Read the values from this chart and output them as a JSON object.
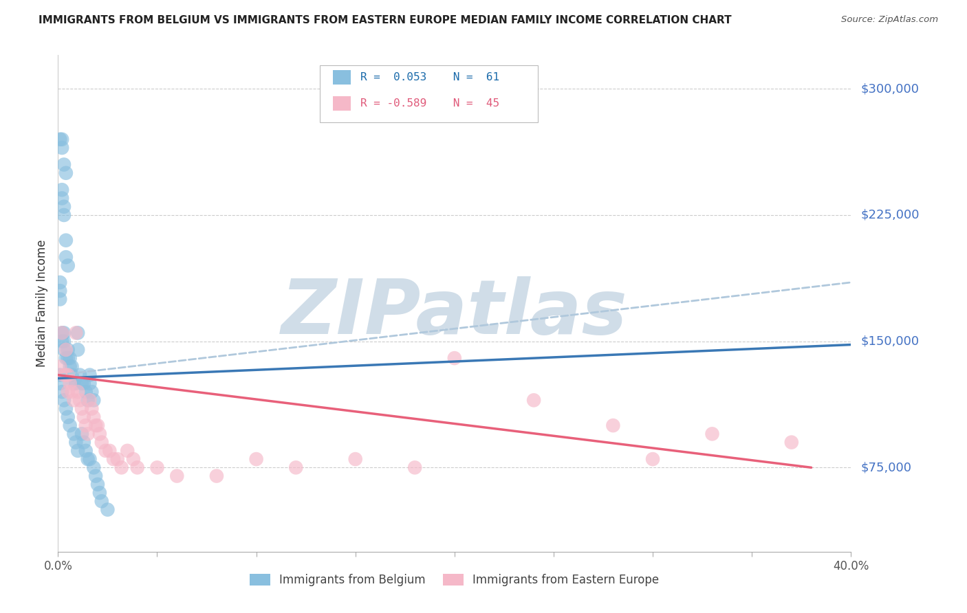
{
  "title": "IMMIGRANTS FROM BELGIUM VS IMMIGRANTS FROM EASTERN EUROPE MEDIAN FAMILY INCOME CORRELATION CHART",
  "source": "Source: ZipAtlas.com",
  "ylabel": "Median Family Income",
  "y_ticks": [
    75000,
    150000,
    225000,
    300000
  ],
  "y_tick_labels": [
    "$75,000",
    "$150,000",
    "$225,000",
    "$300,000"
  ],
  "x_min": 0.0,
  "x_max": 0.4,
  "y_min": 25000,
  "y_max": 320000,
  "blue_color": "#89bfdf",
  "pink_color": "#f5b8c8",
  "blue_line_color": "#3a78b5",
  "pink_line_color": "#e8607a",
  "blue_dashed_color": "#b0c8dc",
  "right_label_color": "#4472c4",
  "watermark": "ZIPatlas",
  "watermark_color": "#d0dde8",
  "blue_scatter_x": [
    0.001,
    0.002,
    0.002,
    0.003,
    0.004,
    0.001,
    0.001,
    0.001,
    0.002,
    0.002,
    0.003,
    0.003,
    0.004,
    0.004,
    0.005,
    0.002,
    0.002,
    0.003,
    0.003,
    0.003,
    0.004,
    0.005,
    0.005,
    0.006,
    0.006,
    0.007,
    0.007,
    0.008,
    0.009,
    0.01,
    0.01,
    0.011,
    0.012,
    0.013,
    0.014,
    0.015,
    0.016,
    0.016,
    0.017,
    0.018,
    0.001,
    0.001,
    0.002,
    0.003,
    0.004,
    0.005,
    0.006,
    0.008,
    0.009,
    0.01,
    0.012,
    0.013,
    0.014,
    0.015,
    0.016,
    0.018,
    0.019,
    0.02,
    0.021,
    0.022,
    0.025
  ],
  "blue_scatter_y": [
    270000,
    270000,
    265000,
    255000,
    250000,
    185000,
    180000,
    175000,
    240000,
    235000,
    230000,
    225000,
    210000,
    200000,
    195000,
    155000,
    150000,
    155000,
    150000,
    145000,
    140000,
    145000,
    140000,
    140000,
    135000,
    135000,
    130000,
    125000,
    125000,
    155000,
    145000,
    130000,
    125000,
    125000,
    120000,
    115000,
    130000,
    125000,
    120000,
    115000,
    130000,
    125000,
    120000,
    115000,
    110000,
    105000,
    100000,
    95000,
    90000,
    85000,
    95000,
    90000,
    85000,
    80000,
    80000,
    75000,
    70000,
    65000,
    60000,
    55000,
    50000
  ],
  "pink_scatter_x": [
    0.001,
    0.002,
    0.003,
    0.004,
    0.004,
    0.005,
    0.005,
    0.006,
    0.007,
    0.008,
    0.009,
    0.01,
    0.011,
    0.012,
    0.013,
    0.014,
    0.015,
    0.016,
    0.017,
    0.018,
    0.019,
    0.02,
    0.021,
    0.022,
    0.024,
    0.026,
    0.028,
    0.03,
    0.032,
    0.035,
    0.038,
    0.04,
    0.05,
    0.06,
    0.08,
    0.1,
    0.12,
    0.15,
    0.18,
    0.2,
    0.24,
    0.28,
    0.3,
    0.33,
    0.37
  ],
  "pink_scatter_y": [
    135000,
    155000,
    130000,
    145000,
    130000,
    130000,
    120000,
    125000,
    120000,
    115000,
    155000,
    120000,
    115000,
    110000,
    105000,
    100000,
    95000,
    115000,
    110000,
    105000,
    100000,
    100000,
    95000,
    90000,
    85000,
    85000,
    80000,
    80000,
    75000,
    85000,
    80000,
    75000,
    75000,
    70000,
    70000,
    80000,
    75000,
    80000,
    75000,
    140000,
    115000,
    100000,
    80000,
    95000,
    90000
  ],
  "blue_line_x0": 0.0,
  "blue_line_x1": 0.4,
  "blue_line_y0": 128000,
  "blue_line_y1": 148000,
  "pink_line_x0": 0.0,
  "pink_line_x1": 0.38,
  "pink_line_y0": 130000,
  "pink_line_y1": 75000,
  "dash_line_x0": 0.0,
  "dash_line_x1": 0.4,
  "dash_line_y0": 130000,
  "dash_line_y1": 185000
}
